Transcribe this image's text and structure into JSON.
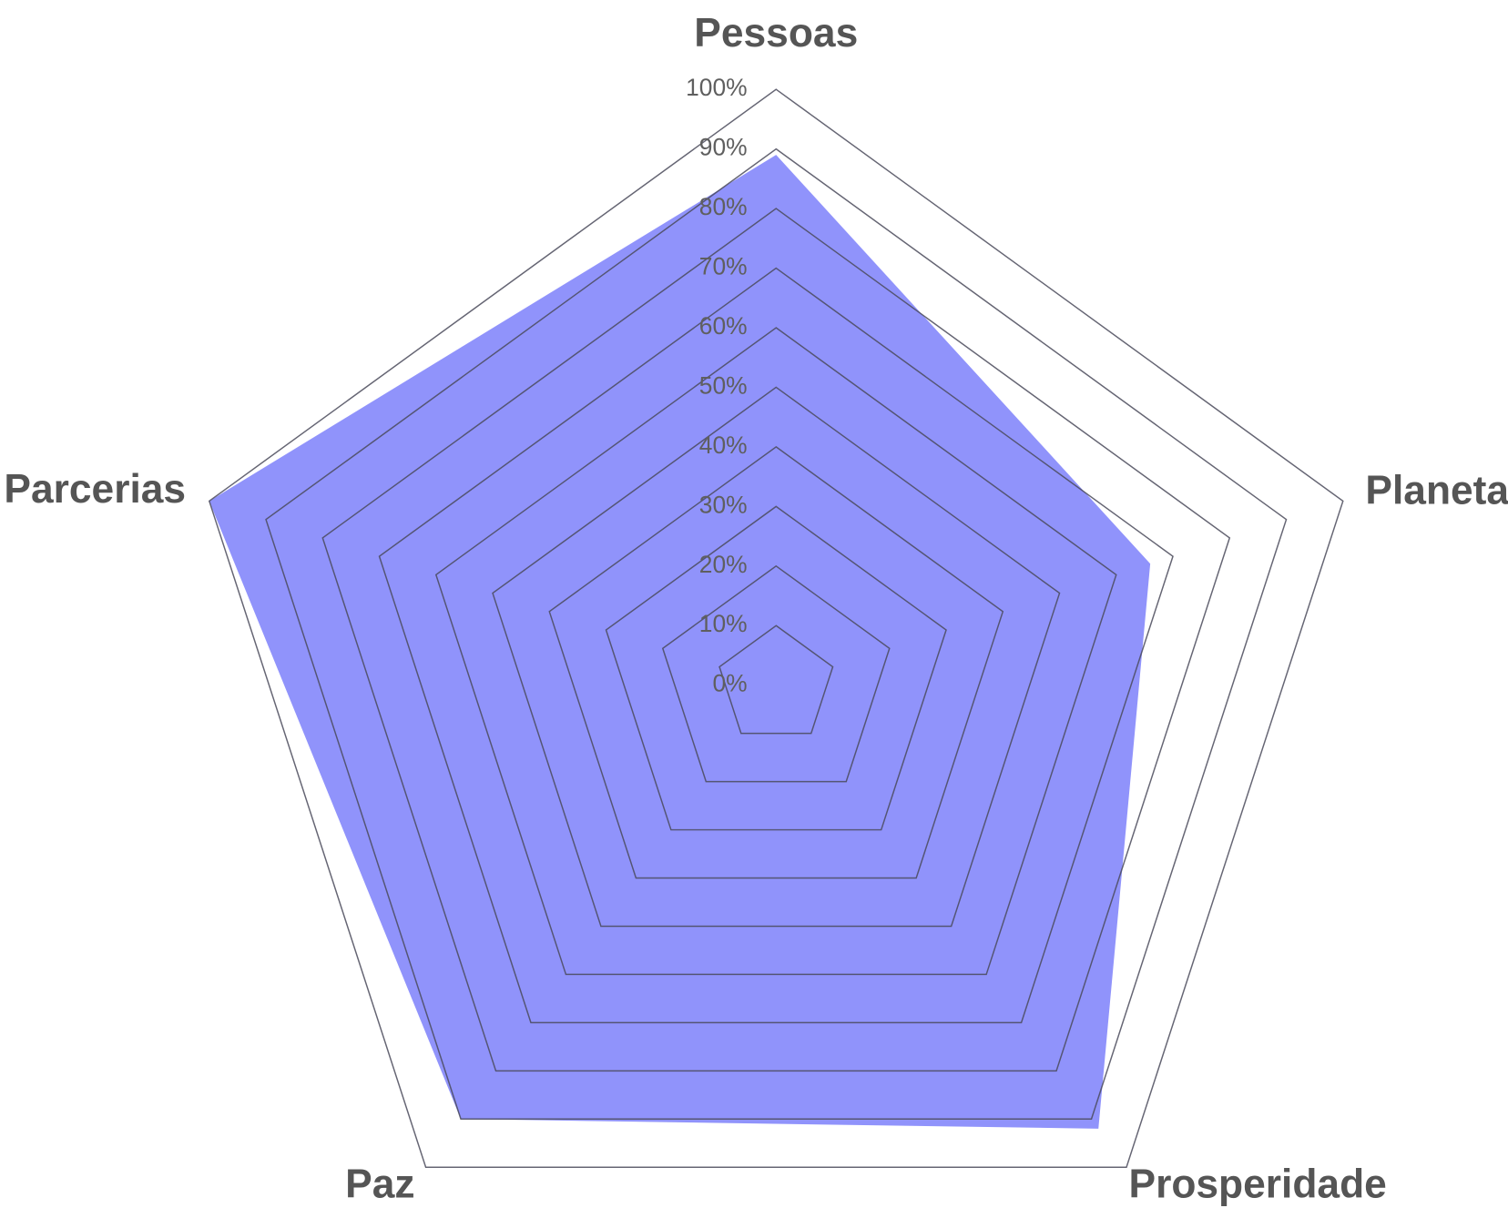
{
  "chart_data": {
    "type": "radar",
    "categories": [
      "Pessoas",
      "Planeta",
      "Prosperidade",
      "Paz",
      "Parcerias"
    ],
    "values": [
      89,
      66,
      92,
      90,
      100
    ],
    "color": "#9093fb",
    "rlim": [
      0,
      100
    ],
    "rticks": [
      {
        "value": 0,
        "label": "0%"
      },
      {
        "value": 10,
        "label": "10%"
      },
      {
        "value": 20,
        "label": "20%"
      },
      {
        "value": 30,
        "label": "30%"
      },
      {
        "value": 40,
        "label": "40%"
      },
      {
        "value": 50,
        "label": "50%"
      },
      {
        "value": 60,
        "label": "60%"
      },
      {
        "value": 70,
        "label": "70%"
      },
      {
        "value": 80,
        "label": "80%"
      },
      {
        "value": 90,
        "label": "90%"
      },
      {
        "value": 100,
        "label": "100%"
      }
    ]
  }
}
